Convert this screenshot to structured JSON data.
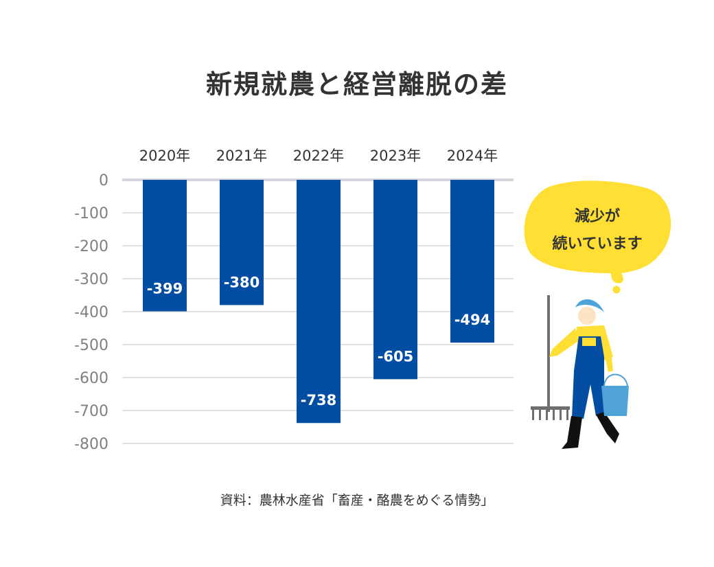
{
  "chart_data": {
    "type": "bar",
    "title": "新規就農と経営離脱の差",
    "categories": [
      "2020年",
      "2021年",
      "2022年",
      "2023年",
      "2024年"
    ],
    "values": [
      -399,
      -380,
      -738,
      -605,
      -494
    ],
    "data_labels": [
      "-399",
      "-380",
      "-738",
      "-605",
      "-494"
    ],
    "yticks": [
      0,
      -100,
      -200,
      -300,
      -400,
      -500,
      -600,
      -700,
      -800
    ],
    "ytick_labels": [
      "0",
      "-100",
      "-200",
      "-300",
      "-400",
      "-500",
      "-600",
      "-700",
      "-800"
    ],
    "ylim": [
      -800,
      0
    ],
    "xaxis_position": "top",
    "grid": true,
    "xlabel": "",
    "ylabel": "",
    "colors": {
      "bar": "#034ea2",
      "grid": "#d3d7dc",
      "tick": "#808080",
      "data_label": "#ffffff"
    }
  },
  "annotation": {
    "line1": "減少が",
    "line2": "続いています",
    "bubble_color": "#ffdf33"
  },
  "source": "資料：農林水産省「畜産・酪農をめぐる情勢」"
}
